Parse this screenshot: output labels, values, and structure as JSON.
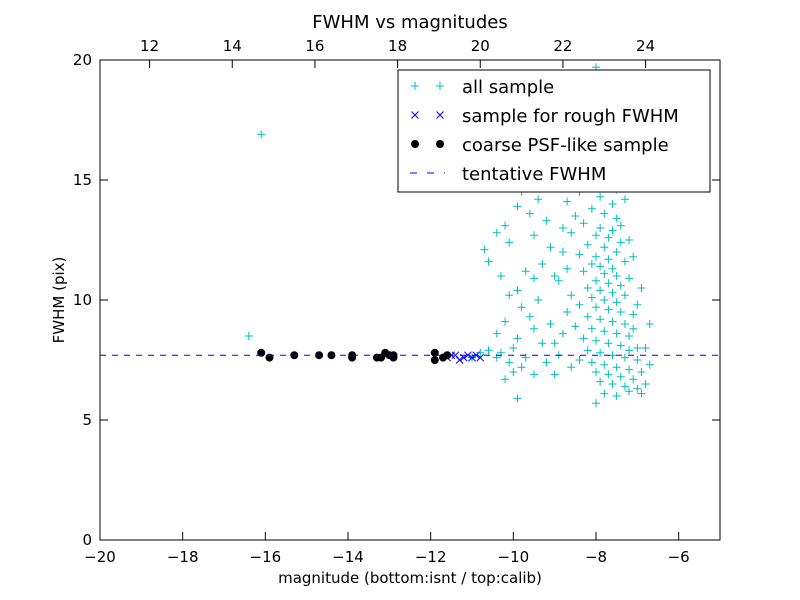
{
  "chart_data": {
    "type": "scatter",
    "title": "FWHM vs magnitudes",
    "xlabel": "magnitude (bottom:isnt / top:calib)",
    "ylabel": "FWHM (pix)",
    "xlim": [
      -20,
      -5
    ],
    "ylim": [
      0,
      20
    ],
    "x_ticks": [
      -20,
      -18,
      -16,
      -14,
      -12,
      -10,
      -8,
      -6
    ],
    "x_tick_labels": [
      "−20",
      "−18",
      "−16",
      "−14",
      "−12",
      "−10",
      "−8",
      "−6"
    ],
    "y_ticks": [
      0,
      5,
      10,
      15,
      20
    ],
    "y_tick_labels": [
      "0",
      "5",
      "10",
      "15",
      "20"
    ],
    "top_axis": {
      "offset": 30.8,
      "ticks": [
        12,
        14,
        16,
        18,
        20,
        22,
        24
      ],
      "tick_labels": [
        "12",
        "14",
        "16",
        "18",
        "20",
        "22",
        "24"
      ]
    },
    "grid": false,
    "legend_position": "top-right",
    "colors": {
      "all_sample": "#00bfbf",
      "rough_sample": "#0000ff",
      "psf_sample": "#000000",
      "tentative": "#0000ff"
    },
    "series": [
      {
        "name": "all sample",
        "marker": "plus",
        "points": [
          [
            -16.1,
            16.9
          ],
          [
            -16.4,
            8.5
          ],
          [
            -8.0,
            19.7
          ],
          [
            -10.0,
            15.0
          ],
          [
            -9.8,
            14.5
          ],
          [
            -9.4,
            14.2
          ],
          [
            -9.9,
            13.9
          ],
          [
            -9.6,
            13.6
          ],
          [
            -9.2,
            13.3
          ],
          [
            -10.2,
            13.1
          ],
          [
            -10.4,
            12.8
          ],
          [
            -9.5,
            12.7
          ],
          [
            -10.1,
            12.4
          ],
          [
            -10.7,
            12.1
          ],
          [
            -10.6,
            11.6
          ],
          [
            -9.3,
            11.5
          ],
          [
            -9.7,
            11.2
          ],
          [
            -10.3,
            11.0
          ],
          [
            -9.5,
            10.9
          ],
          [
            -9.9,
            10.4
          ],
          [
            -10.1,
            10.2
          ],
          [
            -9.4,
            10.0
          ],
          [
            -9.8,
            9.7
          ],
          [
            -9.6,
            9.3
          ],
          [
            -10.2,
            9.1
          ],
          [
            -9.5,
            8.8
          ],
          [
            -10.4,
            8.6
          ],
          [
            -9.9,
            8.4
          ],
          [
            -9.3,
            8.2
          ],
          [
            -10.0,
            8.0
          ],
          [
            -10.6,
            7.9
          ],
          [
            -10.3,
            7.8
          ],
          [
            -9.7,
            7.6
          ],
          [
            -10.1,
            7.4
          ],
          [
            -9.8,
            7.2
          ],
          [
            -10.0,
            7.0
          ],
          [
            -9.5,
            6.9
          ],
          [
            -10.2,
            6.7
          ],
          [
            -9.9,
            5.9
          ],
          [
            -10.4,
            7.6
          ],
          [
            -10.8,
            7.8
          ],
          [
            -11.0,
            7.6
          ],
          [
            -8.2,
            15.1
          ],
          [
            -8.0,
            14.8
          ],
          [
            -7.7,
            14.9
          ],
          [
            -8.4,
            14.5
          ],
          [
            -7.9,
            14.3
          ],
          [
            -7.6,
            14.0
          ],
          [
            -8.1,
            13.8
          ],
          [
            -7.8,
            13.6
          ],
          [
            -7.5,
            13.4
          ],
          [
            -8.3,
            13.2
          ],
          [
            -7.9,
            13.0
          ],
          [
            -7.6,
            12.9
          ],
          [
            -8.0,
            12.7
          ],
          [
            -7.7,
            12.6
          ],
          [
            -7.4,
            12.4
          ],
          [
            -8.2,
            12.3
          ],
          [
            -7.8,
            12.2
          ],
          [
            -7.5,
            12.0
          ],
          [
            -8.4,
            11.9
          ],
          [
            -8.0,
            11.8
          ],
          [
            -7.7,
            11.7
          ],
          [
            -7.3,
            11.6
          ],
          [
            -8.1,
            11.5
          ],
          [
            -7.9,
            11.4
          ],
          [
            -7.6,
            11.3
          ],
          [
            -8.3,
            11.2
          ],
          [
            -7.8,
            11.1
          ],
          [
            -7.5,
            11.0
          ],
          [
            -7.2,
            10.9
          ],
          [
            -8.0,
            10.8
          ],
          [
            -7.7,
            10.7
          ],
          [
            -7.4,
            10.6
          ],
          [
            -8.2,
            10.5
          ],
          [
            -7.9,
            10.4
          ],
          [
            -7.6,
            10.3
          ],
          [
            -7.3,
            10.2
          ],
          [
            -8.1,
            10.1
          ],
          [
            -7.8,
            10.0
          ],
          [
            -7.5,
            9.9
          ],
          [
            -8.4,
            9.8
          ],
          [
            -8.0,
            9.7
          ],
          [
            -7.7,
            9.6
          ],
          [
            -7.4,
            9.5
          ],
          [
            -7.1,
            9.4
          ],
          [
            -8.2,
            9.3
          ],
          [
            -7.9,
            9.2
          ],
          [
            -7.6,
            9.1
          ],
          [
            -7.3,
            9.0
          ],
          [
            -8.5,
            8.9
          ],
          [
            -8.1,
            8.8
          ],
          [
            -7.8,
            8.7
          ],
          [
            -7.5,
            8.6
          ],
          [
            -7.2,
            8.5
          ],
          [
            -8.3,
            8.4
          ],
          [
            -8.0,
            8.3
          ],
          [
            -7.7,
            8.2
          ],
          [
            -7.4,
            8.1
          ],
          [
            -7.0,
            8.0
          ],
          [
            -8.2,
            7.9
          ],
          [
            -7.9,
            7.8
          ],
          [
            -7.6,
            7.7
          ],
          [
            -7.3,
            7.6
          ],
          [
            -8.4,
            7.5
          ],
          [
            -8.1,
            7.4
          ],
          [
            -7.8,
            7.3
          ],
          [
            -7.5,
            7.2
          ],
          [
            -7.2,
            7.1
          ],
          [
            -8.0,
            7.0
          ],
          [
            -7.7,
            6.9
          ],
          [
            -7.4,
            6.8
          ],
          [
            -7.1,
            6.7
          ],
          [
            -7.9,
            6.6
          ],
          [
            -7.6,
            6.5
          ],
          [
            -7.3,
            6.4
          ],
          [
            -7.0,
            6.3
          ],
          [
            -7.8,
            6.1
          ],
          [
            -7.5,
            6.0
          ],
          [
            -8.0,
            5.7
          ],
          [
            -7.2,
            6.2
          ],
          [
            -6.9,
            7.0
          ],
          [
            -6.8,
            8.0
          ],
          [
            -6.7,
            9.0
          ],
          [
            -7.0,
            9.8
          ],
          [
            -6.9,
            10.5
          ],
          [
            -8.6,
            10.2
          ],
          [
            -8.7,
            9.5
          ],
          [
            -8.8,
            8.6
          ],
          [
            -8.9,
            7.7
          ],
          [
            -8.6,
            7.2
          ],
          [
            -9.0,
            6.9
          ],
          [
            -8.7,
            11.3
          ],
          [
            -8.8,
            12.0
          ],
          [
            -8.6,
            12.8
          ],
          [
            -8.5,
            13.5
          ],
          [
            -8.7,
            14.1
          ],
          [
            -8.9,
            10.8
          ],
          [
            -9.1,
            9.0
          ],
          [
            -9.0,
            8.2
          ],
          [
            -9.2,
            7.4
          ],
          [
            -8.8,
            13.0
          ],
          [
            -9.1,
            12.2
          ],
          [
            -9.0,
            11.0
          ],
          [
            -7.1,
            11.8
          ],
          [
            -7.2,
            12.5
          ],
          [
            -7.4,
            13.1
          ],
          [
            -7.3,
            14.2
          ],
          [
            -7.5,
            14.6
          ],
          [
            -7.6,
            15.3
          ],
          [
            -6.8,
            6.5
          ],
          [
            -6.9,
            6.1
          ],
          [
            -7.0,
            7.5
          ],
          [
            -7.2,
            7.9
          ],
          [
            -6.7,
            7.3
          ],
          [
            -7.1,
            8.8
          ]
        ]
      },
      {
        "name": "sample for rough FWHM",
        "marker": "x",
        "points": [
          [
            -11.6,
            7.6
          ],
          [
            -11.4,
            7.7
          ],
          [
            -11.2,
            7.6
          ],
          [
            -11.1,
            7.7
          ],
          [
            -11.0,
            7.6
          ],
          [
            -10.9,
            7.7
          ],
          [
            -10.8,
            7.6
          ],
          [
            -11.3,
            7.5
          ],
          [
            -11.5,
            7.7
          ]
        ]
      },
      {
        "name": "coarse PSF-like sample",
        "marker": "circle",
        "points": [
          [
            -16.1,
            7.8
          ],
          [
            -15.9,
            7.6
          ],
          [
            -15.3,
            7.7
          ],
          [
            -14.7,
            7.7
          ],
          [
            -14.4,
            7.7
          ],
          [
            -13.9,
            7.7
          ],
          [
            -13.9,
            7.6
          ],
          [
            -13.3,
            7.6
          ],
          [
            -13.2,
            7.6
          ],
          [
            -13.1,
            7.8
          ],
          [
            -13.0,
            7.7
          ],
          [
            -12.9,
            7.7
          ],
          [
            -12.9,
            7.6
          ],
          [
            -11.9,
            7.8
          ],
          [
            -11.9,
            7.5
          ],
          [
            -11.7,
            7.6
          ],
          [
            -11.6,
            7.7
          ]
        ]
      },
      {
        "name": "tentative FWHM",
        "marker": "dashed-line",
        "y": 7.7
      }
    ]
  }
}
